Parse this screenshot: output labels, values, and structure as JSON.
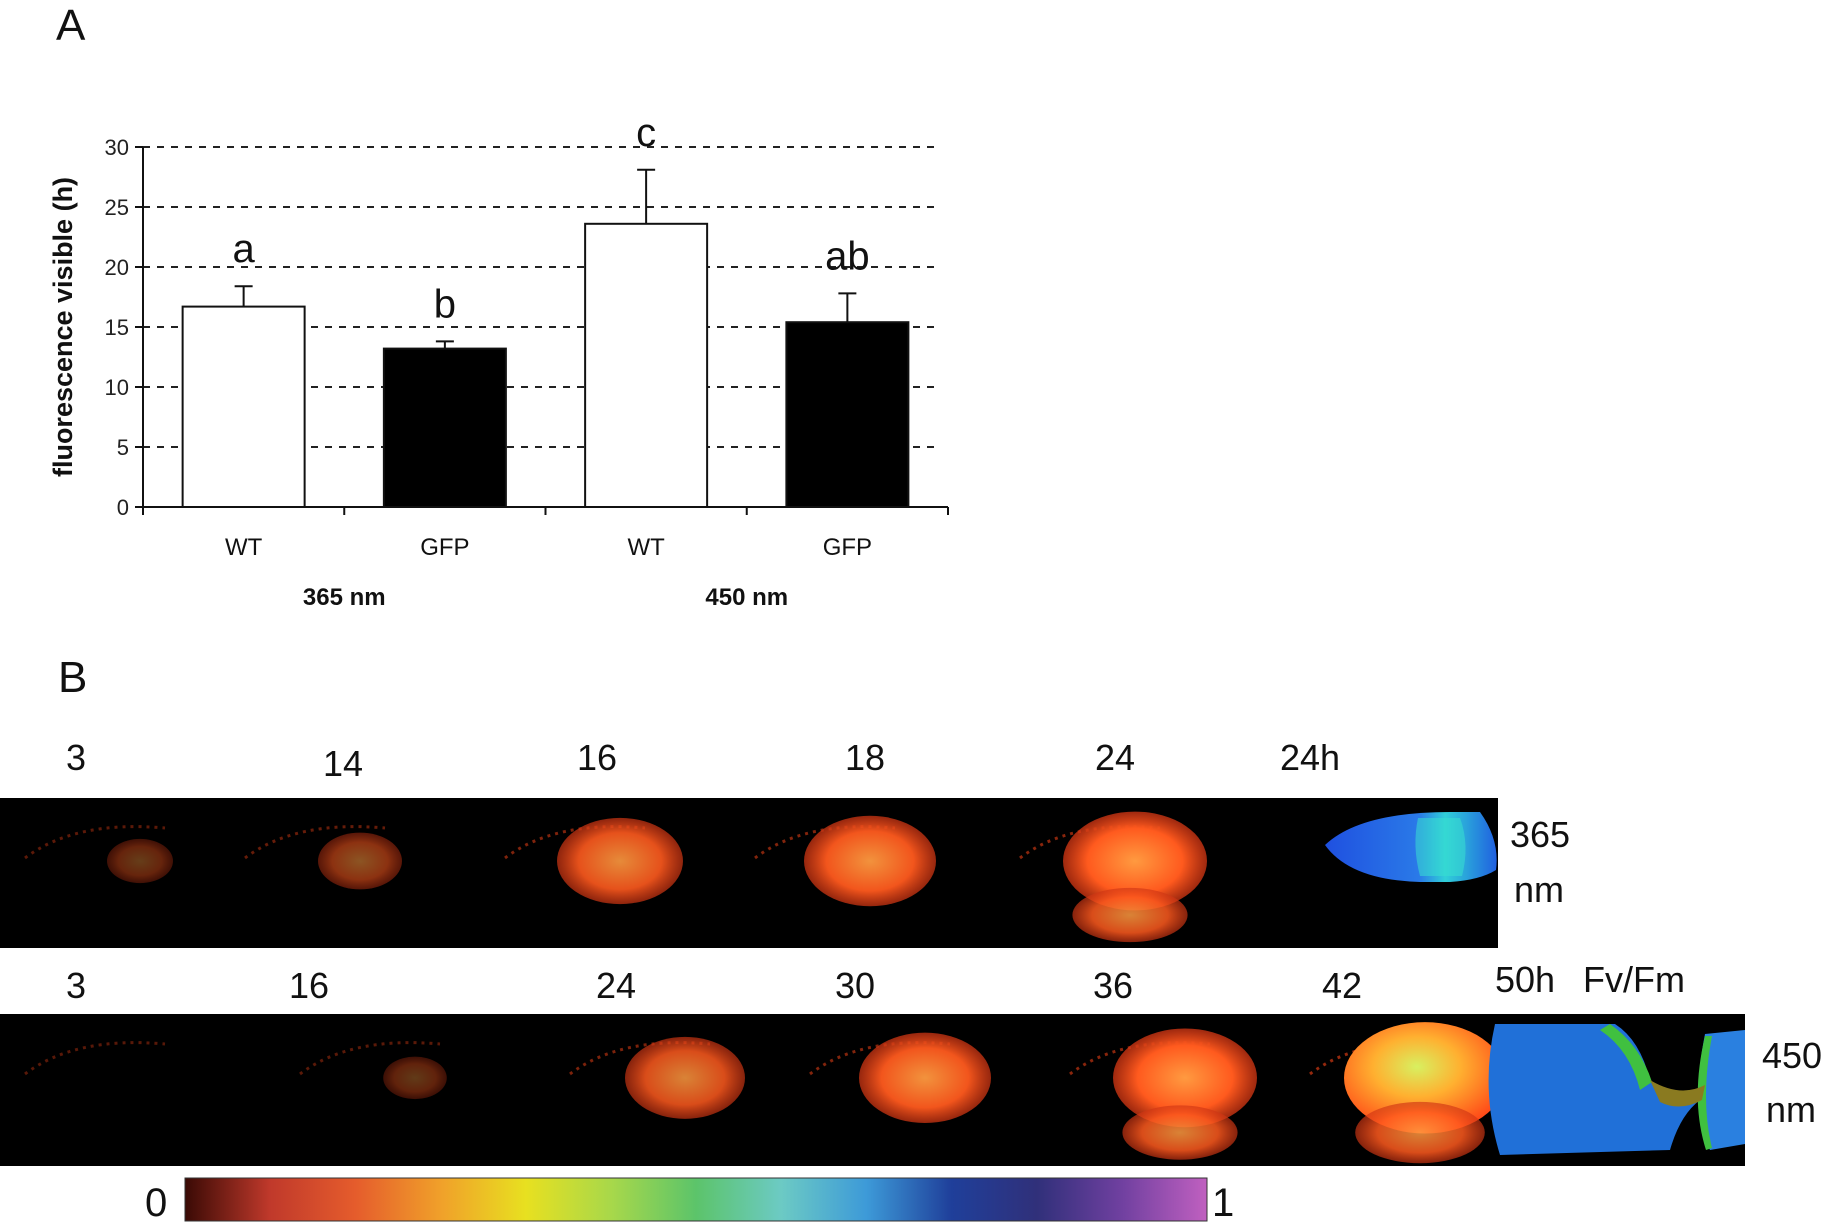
{
  "panels": {
    "a_letter": "A",
    "b_letter": "B"
  },
  "chart_data": {
    "type": "bar",
    "title": "",
    "xlabel": "",
    "ylabel": "fluorescence visible (h)",
    "ylim": [
      0,
      30
    ],
    "yticks": [
      "0",
      "5",
      "10",
      "15",
      "20",
      "25",
      "30"
    ],
    "grid": "horizontal dashed",
    "legend": "none",
    "categories": [
      "WT",
      "GFP",
      "WT",
      "GFP"
    ],
    "groups": [
      {
        "label": "365 nm",
        "categories": [
          0,
          1
        ]
      },
      {
        "label": "450 nm",
        "categories": [
          2,
          3
        ]
      }
    ],
    "values": [
      16.7,
      13.2,
      23.6,
      15.4
    ],
    "errors": [
      1.7,
      0.6,
      4.5,
      2.4
    ],
    "bar_colors": [
      "#ffffff",
      "#000000",
      "#ffffff",
      "#000000"
    ],
    "significance": [
      "a",
      "b",
      "c",
      "ab"
    ]
  },
  "timeseries": {
    "row1": {
      "labels": [
        "3",
        "14",
        "16",
        "18",
        "24",
        "24h"
      ],
      "wavelength_value": "365",
      "wavelength_unit": "nm",
      "intensity": [
        0.05,
        0.2,
        0.55,
        0.6,
        0.7
      ]
    },
    "row2": {
      "labels": [
        "3",
        "16",
        "24",
        "30",
        "36",
        "42",
        "50h",
        "Fv/Fm"
      ],
      "wavelength_value": "450",
      "wavelength_unit": "nm",
      "intensity": [
        0.0,
        0.03,
        0.5,
        0.6,
        0.7,
        0.85
      ]
    }
  },
  "colorbar": {
    "min_label": "0",
    "max_label": "1",
    "colors": [
      "#3a0a05",
      "#c0392b",
      "#e55c2c",
      "#f0a02a",
      "#e8e020",
      "#a8d84a",
      "#5cc46a",
      "#6ccac4",
      "#3d9ad8",
      "#1f3f9a",
      "#30307a",
      "#7040a0",
      "#c060c0"
    ]
  }
}
